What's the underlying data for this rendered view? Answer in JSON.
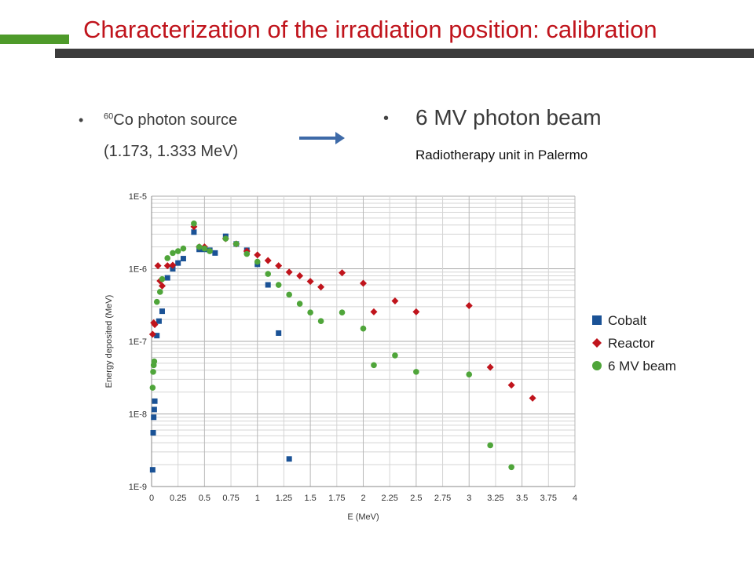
{
  "slide": {
    "title": "Characterization of the irradiation position: calibration",
    "source_line1_sup": "60",
    "source_line1": "Co photon source",
    "source_line2": "(1.173, 1.333 MeV)",
    "beam_label": "6 MV photon beam",
    "caption": "Radiotherapy unit in Palermo",
    "bullet": "•",
    "colors": {
      "title": "#c0141c",
      "accent_green": "#4e9a2a",
      "bar_dark": "#3c3c3c",
      "arrow": "#3e6aa8"
    }
  },
  "chart_data": {
    "type": "scatter",
    "xlabel": "E (MeV)",
    "ylabel": "Energy deposited (MeV)",
    "xlim": [
      0,
      4
    ],
    "y_log_exponents": [
      -9,
      -5
    ],
    "y_scale": "log",
    "grid": true,
    "legend_position": "right",
    "x_ticks": [
      "0",
      "0.25",
      "0.5",
      "0.75",
      "1",
      "1.25",
      "1.5",
      "1.75",
      "2",
      "2.25",
      "2.5",
      "2.75",
      "3",
      "3.25",
      "3.5",
      "3.75",
      "4"
    ],
    "y_ticks": [
      "1E-9",
      "1E-8",
      "1E-7",
      "1E-6",
      "1E-5"
    ],
    "series": [
      {
        "name": "Cobalt",
        "color": "#1a5296",
        "marker": "square",
        "points": [
          [
            0.01,
            1.7e-09
          ],
          [
            0.015,
            5.5e-09
          ],
          [
            0.02,
            9e-09
          ],
          [
            0.025,
            1.15e-08
          ],
          [
            0.03,
            1.5e-08
          ],
          [
            0.05,
            1.2e-07
          ],
          [
            0.07,
            1.9e-07
          ],
          [
            0.1,
            2.6e-07
          ],
          [
            0.15,
            7.5e-07
          ],
          [
            0.2,
            1e-06
          ],
          [
            0.25,
            1.2e-06
          ],
          [
            0.3,
            1.38e-06
          ],
          [
            0.4,
            3.2e-06
          ],
          [
            0.45,
            1.85e-06
          ],
          [
            0.5,
            1.85e-06
          ],
          [
            0.55,
            1.8e-06
          ],
          [
            0.6,
            1.65e-06
          ],
          [
            0.7,
            2.8e-06
          ],
          [
            0.8,
            2.2e-06
          ],
          [
            0.9,
            1.8e-06
          ],
          [
            1.0,
            1.15e-06
          ],
          [
            1.1,
            6e-07
          ],
          [
            1.2,
            1.3e-07
          ],
          [
            1.3,
            2.4e-09
          ]
        ]
      },
      {
        "name": "Reactor",
        "color": "#c0141c",
        "marker": "diamond",
        "points": [
          [
            0.01,
            1.25e-07
          ],
          [
            0.02,
            1.8e-07
          ],
          [
            0.03,
            1.7e-07
          ],
          [
            0.06,
            1.1e-06
          ],
          [
            0.08,
            6.8e-07
          ],
          [
            0.1,
            5.8e-07
          ],
          [
            0.15,
            1.1e-06
          ],
          [
            0.2,
            1.12e-06
          ],
          [
            0.4,
            3.8e-06
          ],
          [
            0.45,
            2e-06
          ],
          [
            0.5,
            2e-06
          ],
          [
            0.7,
            2.6e-06
          ],
          [
            0.8,
            2.2e-06
          ],
          [
            0.9,
            1.75e-06
          ],
          [
            1.0,
            1.55e-06
          ],
          [
            1.1,
            1.3e-06
          ],
          [
            1.2,
            1.1e-06
          ],
          [
            1.3,
            9e-07
          ],
          [
            1.4,
            8e-07
          ],
          [
            1.5,
            6.7e-07
          ],
          [
            1.6,
            5.6e-07
          ],
          [
            1.8,
            8.8e-07
          ],
          [
            2.0,
            6.3e-07
          ],
          [
            2.1,
            2.55e-07
          ],
          [
            2.3,
            3.6e-07
          ],
          [
            2.5,
            2.55e-07
          ],
          [
            3.0,
            3.1e-07
          ],
          [
            3.2,
            4.4e-08
          ],
          [
            3.4,
            2.5e-08
          ],
          [
            3.6,
            1.65e-08
          ]
        ]
      },
      {
        "name": "6 MV beam",
        "color": "#4fa53a",
        "marker": "circle",
        "points": [
          [
            0.01,
            2.3e-08
          ],
          [
            0.015,
            3.8e-08
          ],
          [
            0.02,
            4.7e-08
          ],
          [
            0.025,
            5.3e-08
          ],
          [
            0.05,
            3.5e-07
          ],
          [
            0.08,
            4.8e-07
          ],
          [
            0.1,
            7.2e-07
          ],
          [
            0.15,
            1.4e-06
          ],
          [
            0.2,
            1.65e-06
          ],
          [
            0.25,
            1.75e-06
          ],
          [
            0.3,
            1.9e-06
          ],
          [
            0.4,
            4.2e-06
          ],
          [
            0.45,
            2e-06
          ],
          [
            0.5,
            1.9e-06
          ],
          [
            0.55,
            1.75e-06
          ],
          [
            0.7,
            2.6e-06
          ],
          [
            0.8,
            2.2e-06
          ],
          [
            0.9,
            1.6e-06
          ],
          [
            1.0,
            1.25e-06
          ],
          [
            1.1,
            8.5e-07
          ],
          [
            1.2,
            6e-07
          ],
          [
            1.3,
            4.4e-07
          ],
          [
            1.4,
            3.3e-07
          ],
          [
            1.5,
            2.5e-07
          ],
          [
            1.6,
            1.9e-07
          ],
          [
            1.8,
            2.5e-07
          ],
          [
            2.0,
            1.5e-07
          ],
          [
            2.1,
            4.7e-08
          ],
          [
            2.3,
            6.4e-08
          ],
          [
            2.5,
            3.8e-08
          ],
          [
            3.0,
            3.5e-08
          ],
          [
            3.2,
            3.7e-09
          ],
          [
            3.4,
            1.85e-09
          ]
        ]
      }
    ]
  }
}
